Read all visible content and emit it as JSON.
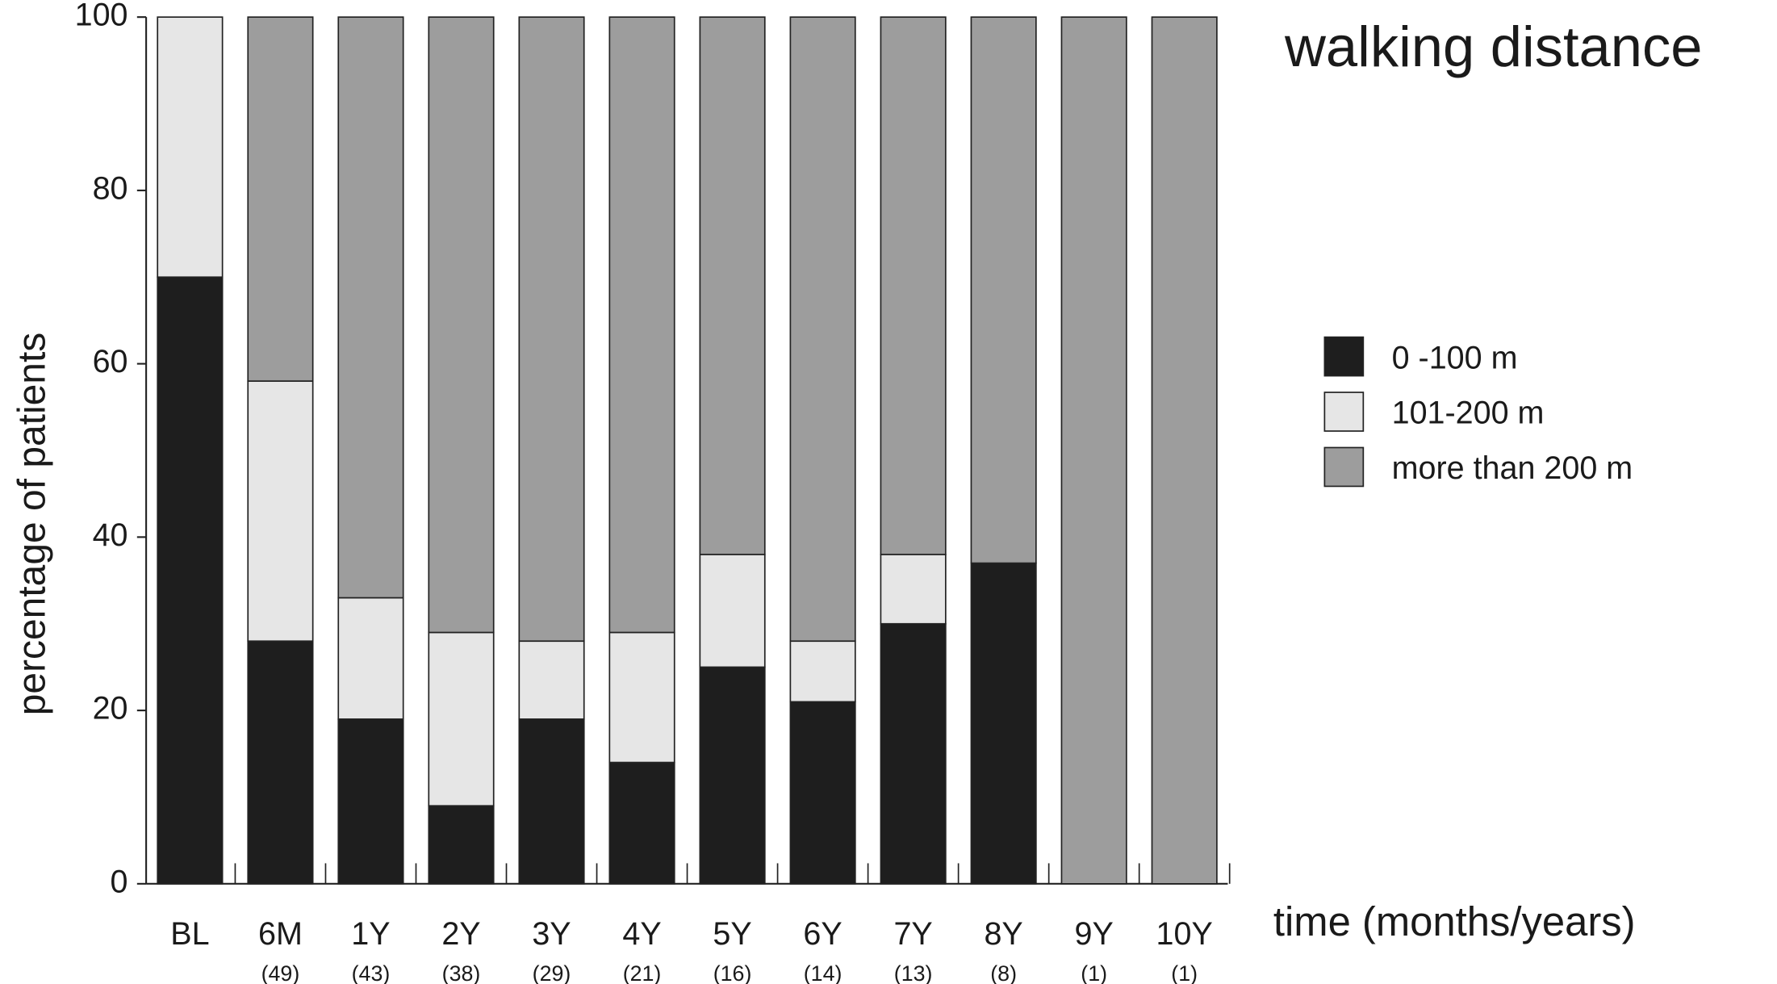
{
  "chart_data": {
    "type": "stacked_bar",
    "title": "walking distance",
    "y_label": "percentage of patients",
    "x_label": "time (months/years)",
    "categories": [
      "BL",
      "6M",
      "1Y",
      "2Y",
      "3Y",
      "4Y",
      "5Y",
      "6Y",
      "7Y",
      "8Y",
      "9Y",
      "10Y"
    ],
    "sample_sizes": [
      null,
      "(49)",
      "(43)",
      "(38)",
      "(29)",
      "(21)",
      "(16)",
      "(14)",
      "(13)",
      "(8)",
      "(1)",
      "(1)"
    ],
    "series": [
      {
        "name": "0 -100 m",
        "color": "#1e1e1e",
        "values": [
          70,
          28,
          19,
          9,
          19,
          14,
          25,
          21,
          30,
          37,
          0,
          0
        ]
      },
      {
        "name": "101-200 m",
        "color": "#e6e6e6",
        "values": [
          30,
          30,
          14,
          20,
          9,
          15,
          13,
          7,
          8,
          0,
          0,
          0
        ]
      },
      {
        "name": "more than 200 m",
        "color": "#9d9d9d",
        "values": [
          0,
          42,
          67,
          71,
          72,
          71,
          62,
          72,
          62,
          63,
          100,
          100
        ]
      }
    ],
    "ylim": [
      0,
      100
    ],
    "yticks": [
      0,
      20,
      40,
      60,
      80,
      100
    ],
    "legend": "right"
  }
}
